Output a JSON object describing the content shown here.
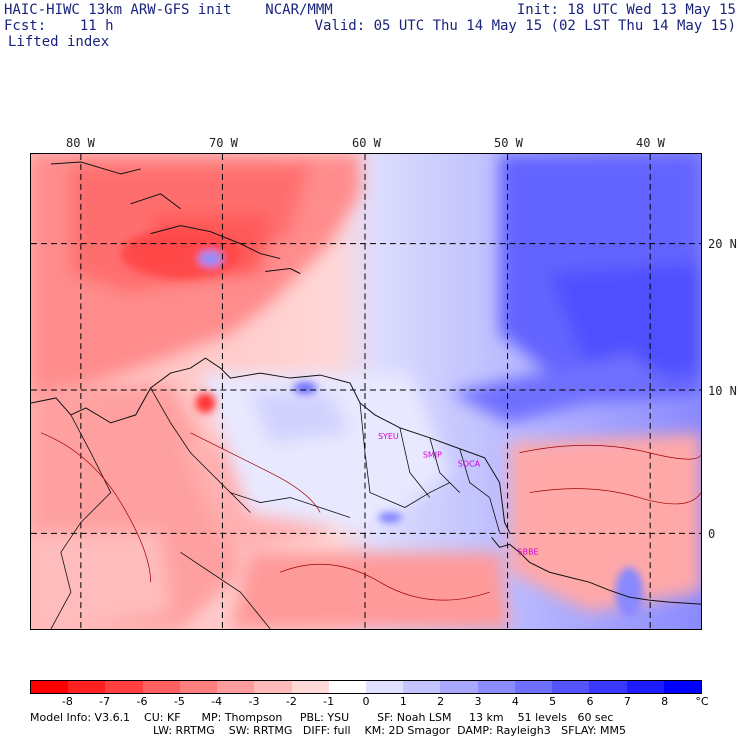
{
  "header": {
    "model_title": "HAIC-HIWC 13km ARW-GFS init    NCAR/MMM",
    "fcst_label": "Fcst:    11 h",
    "field_name": "Lifted index",
    "init_time": "Init: 18 UTC Wed 13 May 15",
    "valid_time": "Valid: 05 UTC Thu 14 May 15 (02 LST Thu 14 May 15)"
  },
  "map": {
    "lon_labels": [
      "80 W",
      "70 W",
      "60 W",
      "50 W",
      "40 W"
    ],
    "lat_labels": [
      "20 N",
      "10 N",
      "0"
    ],
    "stations": [
      "SYEU",
      "SMJP",
      "SOCA",
      "SBBE"
    ]
  },
  "colorbar": {
    "ticks": [
      "-8",
      "-7",
      "-6",
      "-5",
      "-4",
      "-3",
      "-2",
      "-1",
      "0",
      "1",
      "2",
      "3",
      "4",
      "5",
      "6",
      "7",
      "8"
    ],
    "unit": "°C",
    "colors": [
      "#ff0000",
      "#ff2020",
      "#ff4040",
      "#ff6060",
      "#ff7e7e",
      "#ff9c9c",
      "#ffbaba",
      "#ffd8d8",
      "#ffffff",
      "#e0e0ff",
      "#c4c4ff",
      "#a8a8ff",
      "#8c8cff",
      "#7070ff",
      "#5454ff",
      "#3838ff",
      "#1c1cff",
      "#0000ff"
    ]
  },
  "model_info": {
    "line1": "Model Info: V3.6.1    CU: KF      MP: Thompson     PBL: YSU        SF: Noah LSM     13 km    51 levels   60 sec",
    "line2": "LW: RRTMG    SW: RRTMG   DIFF: full    KM: 2D Smagor  DAMP: Rayleigh3   SFLAY: MM5"
  }
}
